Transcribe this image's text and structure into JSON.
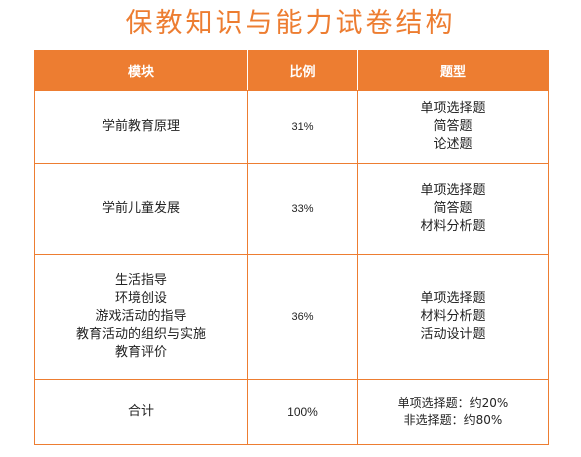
{
  "title": "保教知识与能力试卷结构",
  "colors": {
    "accent": "#ed7d31",
    "header_text": "#ffffff"
  },
  "table": {
    "headers": [
      "模块",
      "比例",
      "题型"
    ],
    "rows": [
      {
        "module": [
          "学前教育原理"
        ],
        "ratio": "31%",
        "types": [
          "单项选择题",
          "简答题",
          "论述题"
        ]
      },
      {
        "module": [
          "学前儿童发展"
        ],
        "ratio": "33%",
        "types": [
          "单项选择题",
          "简答题",
          "材料分析题"
        ]
      },
      {
        "module": [
          "生活指导",
          "环境创设",
          "游戏活动的指导",
          "教育活动的组织与实施",
          "教育评价"
        ],
        "ratio": "36%",
        "types": [
          "单项选择题",
          "材料分析题",
          "活动设计题"
        ]
      },
      {
        "module": [
          "合计"
        ],
        "ratio": "100%",
        "types": [
          "单项选择题：约20%",
          "非选择题：约80%"
        ]
      }
    ]
  }
}
